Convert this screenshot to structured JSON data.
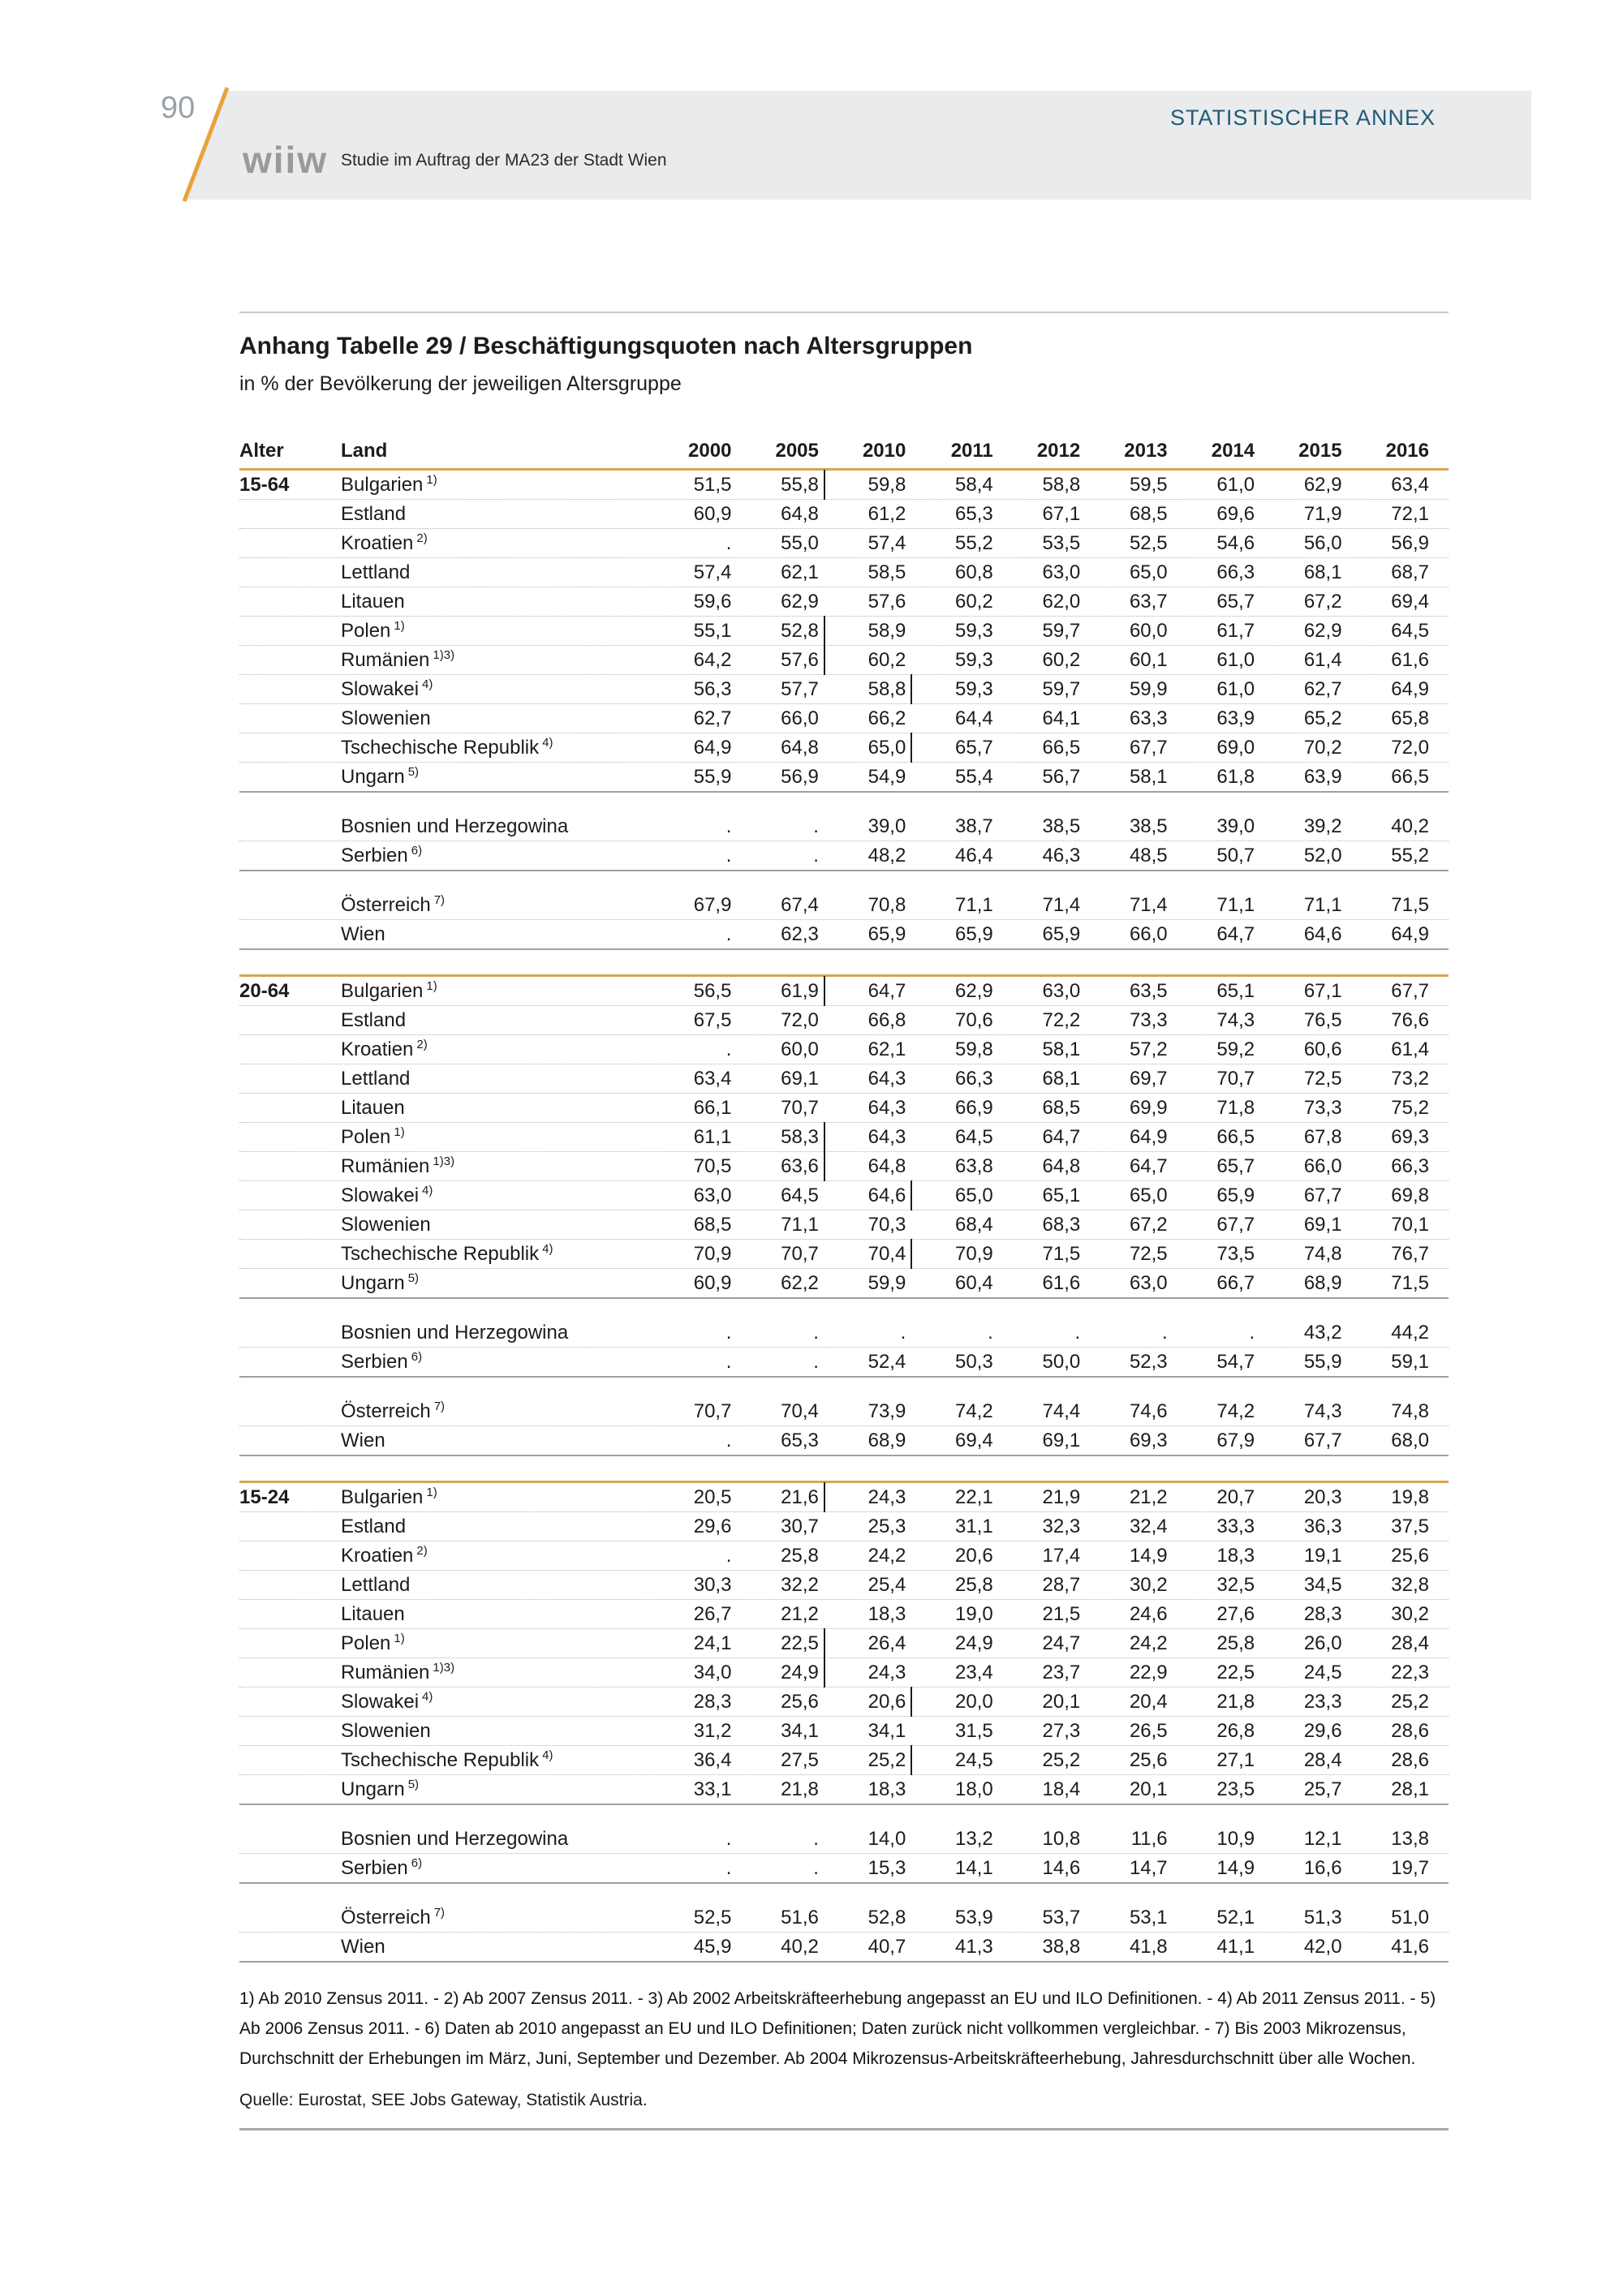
{
  "header": {
    "page_number": "90",
    "annex_title": "STATISTISCHER ANNEX",
    "logo_text": "wiiw",
    "tagline": "Studie im Auftrag der MA23 der Stadt Wien"
  },
  "colors": {
    "accent_gold": "#d8a64f",
    "banner_gray": "#e9ebec",
    "annex_blue": "#235a78",
    "diagonal_orange": "#e8a23c"
  },
  "table": {
    "title": "Anhang Tabelle 29 / Beschäftigungsquoten nach Altersgruppen",
    "subtitle": "in % der Bevölkerung der jeweiligen Altersgruppe",
    "columns": [
      "Alter",
      "Land",
      "2000",
      "2005",
      "2010",
      "2011",
      "2012",
      "2013",
      "2014",
      "2015",
      "2016"
    ],
    "blocks": [
      {
        "age": "15-64",
        "groups": [
          {
            "rows": [
              {
                "land": "Bulgarien",
                "fn": "1)",
                "values": [
                  "51,5",
                  "55,8|",
                  "59,8",
                  "58,4",
                  "58,8",
                  "59,5",
                  "61,0",
                  "62,9",
                  "63,4"
                ]
              },
              {
                "land": "Estland",
                "fn": "",
                "values": [
                  "60,9",
                  "64,8",
                  "61,2",
                  "65,3",
                  "67,1",
                  "68,5",
                  "69,6",
                  "71,9",
                  "72,1"
                ]
              },
              {
                "land": "Kroatien",
                "fn": "2)",
                "values": [
                  ".",
                  "55,0",
                  "57,4",
                  "55,2",
                  "53,5",
                  "52,5",
                  "54,6",
                  "56,0",
                  "56,9"
                ]
              },
              {
                "land": "Lettland",
                "fn": "",
                "values": [
                  "57,4",
                  "62,1",
                  "58,5",
                  "60,8",
                  "63,0",
                  "65,0",
                  "66,3",
                  "68,1",
                  "68,7"
                ]
              },
              {
                "land": "Litauen",
                "fn": "",
                "values": [
                  "59,6",
                  "62,9",
                  "57,6",
                  "60,2",
                  "62,0",
                  "63,7",
                  "65,7",
                  "67,2",
                  "69,4"
                ]
              },
              {
                "land": "Polen",
                "fn": "1)",
                "values": [
                  "55,1",
                  "52,8|",
                  "58,9",
                  "59,3",
                  "59,7",
                  "60,0",
                  "61,7",
                  "62,9",
                  "64,5"
                ]
              },
              {
                "land": "Rumänien",
                "fn": "1)3)",
                "values": [
                  "64,2",
                  "57,6|",
                  "60,2",
                  "59,3",
                  "60,2",
                  "60,1",
                  "61,0",
                  "61,4",
                  "61,6"
                ]
              },
              {
                "land": "Slowakei",
                "fn": "4)",
                "values": [
                  "56,3",
                  "57,7",
                  "58,8|",
                  "59,3",
                  "59,7",
                  "59,9",
                  "61,0",
                  "62,7",
                  "64,9"
                ]
              },
              {
                "land": "Slowenien",
                "fn": "",
                "values": [
                  "62,7",
                  "66,0",
                  "66,2",
                  "64,4",
                  "64,1",
                  "63,3",
                  "63,9",
                  "65,2",
                  "65,8"
                ]
              },
              {
                "land": "Tschechische Republik",
                "fn": "4)",
                "values": [
                  "64,9",
                  "64,8",
                  "65,0|",
                  "65,7",
                  "66,5",
                  "67,7",
                  "69,0",
                  "70,2",
                  "72,0"
                ]
              },
              {
                "land": "Ungarn",
                "fn": "5)",
                "values": [
                  "55,9",
                  "56,9",
                  "54,9",
                  "55,4",
                  "56,7",
                  "58,1",
                  "61,8",
                  "63,9",
                  "66,5"
                ]
              }
            ]
          },
          {
            "rows": [
              {
                "land": "Bosnien und Herzegowina",
                "fn": "",
                "values": [
                  ".",
                  ".",
                  "39,0",
                  "38,7",
                  "38,5",
                  "38,5",
                  "39,0",
                  "39,2",
                  "40,2"
                ]
              },
              {
                "land": "Serbien",
                "fn": "6)",
                "values": [
                  ".",
                  ".",
                  "48,2",
                  "46,4",
                  "46,3",
                  "48,5",
                  "50,7",
                  "52,0",
                  "55,2"
                ]
              }
            ]
          },
          {
            "rows": [
              {
                "land": "Österreich",
                "fn": "7)",
                "values": [
                  "67,9",
                  "67,4",
                  "70,8",
                  "71,1",
                  "71,4",
                  "71,4",
                  "71,1",
                  "71,1",
                  "71,5"
                ]
              },
              {
                "land": "Wien",
                "fn": "",
                "values": [
                  ".",
                  "62,3",
                  "65,9",
                  "65,9",
                  "65,9",
                  "66,0",
                  "64,7",
                  "64,6",
                  "64,9"
                ]
              }
            ]
          }
        ]
      },
      {
        "age": "20-64",
        "groups": [
          {
            "rows": [
              {
                "land": "Bulgarien",
                "fn": "1)",
                "values": [
                  "56,5",
                  "61,9|",
                  "64,7",
                  "62,9",
                  "63,0",
                  "63,5",
                  "65,1",
                  "67,1",
                  "67,7"
                ]
              },
              {
                "land": "Estland",
                "fn": "",
                "values": [
                  "67,5",
                  "72,0",
                  "66,8",
                  "70,6",
                  "72,2",
                  "73,3",
                  "74,3",
                  "76,5",
                  "76,6"
                ]
              },
              {
                "land": "Kroatien",
                "fn": "2)",
                "values": [
                  ".",
                  "60,0",
                  "62,1",
                  "59,8",
                  "58,1",
                  "57,2",
                  "59,2",
                  "60,6",
                  "61,4"
                ]
              },
              {
                "land": "Lettland",
                "fn": "",
                "values": [
                  "63,4",
                  "69,1",
                  "64,3",
                  "66,3",
                  "68,1",
                  "69,7",
                  "70,7",
                  "72,5",
                  "73,2"
                ]
              },
              {
                "land": "Litauen",
                "fn": "",
                "values": [
                  "66,1",
                  "70,7",
                  "64,3",
                  "66,9",
                  "68,5",
                  "69,9",
                  "71,8",
                  "73,3",
                  "75,2"
                ]
              },
              {
                "land": "Polen",
                "fn": "1)",
                "values": [
                  "61,1",
                  "58,3|",
                  "64,3",
                  "64,5",
                  "64,7",
                  "64,9",
                  "66,5",
                  "67,8",
                  "69,3"
                ]
              },
              {
                "land": "Rumänien",
                "fn": "1)3)",
                "values": [
                  "70,5",
                  "63,6|",
                  "64,8",
                  "63,8",
                  "64,8",
                  "64,7",
                  "65,7",
                  "66,0",
                  "66,3"
                ]
              },
              {
                "land": "Slowakei",
                "fn": "4)",
                "values": [
                  "63,0",
                  "64,5",
                  "64,6|",
                  "65,0",
                  "65,1",
                  "65,0",
                  "65,9",
                  "67,7",
                  "69,8"
                ]
              },
              {
                "land": "Slowenien",
                "fn": "",
                "values": [
                  "68,5",
                  "71,1",
                  "70,3",
                  "68,4",
                  "68,3",
                  "67,2",
                  "67,7",
                  "69,1",
                  "70,1"
                ]
              },
              {
                "land": "Tschechische Republik",
                "fn": "4)",
                "values": [
                  "70,9",
                  "70,7",
                  "70,4|",
                  "70,9",
                  "71,5",
                  "72,5",
                  "73,5",
                  "74,8",
                  "76,7"
                ]
              },
              {
                "land": "Ungarn",
                "fn": "5)",
                "values": [
                  "60,9",
                  "62,2",
                  "59,9",
                  "60,4",
                  "61,6",
                  "63,0",
                  "66,7",
                  "68,9",
                  "71,5"
                ]
              }
            ]
          },
          {
            "rows": [
              {
                "land": "Bosnien und Herzegowina",
                "fn": "",
                "values": [
                  ".",
                  ".",
                  ".",
                  ".",
                  ".",
                  ".",
                  ".",
                  "43,2",
                  "44,2"
                ]
              },
              {
                "land": "Serbien",
                "fn": "6)",
                "values": [
                  ".",
                  ".",
                  "52,4",
                  "50,3",
                  "50,0",
                  "52,3",
                  "54,7",
                  "55,9",
                  "59,1"
                ]
              }
            ]
          },
          {
            "rows": [
              {
                "land": "Österreich",
                "fn": "7)",
                "values": [
                  "70,7",
                  "70,4",
                  "73,9",
                  "74,2",
                  "74,4",
                  "74,6",
                  "74,2",
                  "74,3",
                  "74,8"
                ]
              },
              {
                "land": "Wien",
                "fn": "",
                "values": [
                  ".",
                  "65,3",
                  "68,9",
                  "69,4",
                  "69,1",
                  "69,3",
                  "67,9",
                  "67,7",
                  "68,0"
                ]
              }
            ]
          }
        ]
      },
      {
        "age": "15-24",
        "groups": [
          {
            "rows": [
              {
                "land": "Bulgarien",
                "fn": "1)",
                "values": [
                  "20,5",
                  "21,6|",
                  "24,3",
                  "22,1",
                  "21,9",
                  "21,2",
                  "20,7",
                  "20,3",
                  "19,8"
                ]
              },
              {
                "land": "Estland",
                "fn": "",
                "values": [
                  "29,6",
                  "30,7",
                  "25,3",
                  "31,1",
                  "32,3",
                  "32,4",
                  "33,3",
                  "36,3",
                  "37,5"
                ]
              },
              {
                "land": "Kroatien",
                "fn": "2)",
                "values": [
                  ".",
                  "25,8",
                  "24,2",
                  "20,6",
                  "17,4",
                  "14,9",
                  "18,3",
                  "19,1",
                  "25,6"
                ]
              },
              {
                "land": "Lettland",
                "fn": "",
                "values": [
                  "30,3",
                  "32,2",
                  "25,4",
                  "25,8",
                  "28,7",
                  "30,2",
                  "32,5",
                  "34,5",
                  "32,8"
                ]
              },
              {
                "land": "Litauen",
                "fn": "",
                "values": [
                  "26,7",
                  "21,2",
                  "18,3",
                  "19,0",
                  "21,5",
                  "24,6",
                  "27,6",
                  "28,3",
                  "30,2"
                ]
              },
              {
                "land": "Polen",
                "fn": "1)",
                "values": [
                  "24,1",
                  "22,5|",
                  "26,4",
                  "24,9",
                  "24,7",
                  "24,2",
                  "25,8",
                  "26,0",
                  "28,4"
                ]
              },
              {
                "land": "Rumänien",
                "fn": "1)3)",
                "values": [
                  "34,0",
                  "24,9|",
                  "24,3",
                  "23,4",
                  "23,7",
                  "22,9",
                  "22,5",
                  "24,5",
                  "22,3"
                ]
              },
              {
                "land": "Slowakei",
                "fn": "4)",
                "values": [
                  "28,3",
                  "25,6",
                  "20,6|",
                  "20,0",
                  "20,1",
                  "20,4",
                  "21,8",
                  "23,3",
                  "25,2"
                ]
              },
              {
                "land": "Slowenien",
                "fn": "",
                "values": [
                  "31,2",
                  "34,1",
                  "34,1",
                  "31,5",
                  "27,3",
                  "26,5",
                  "26,8",
                  "29,6",
                  "28,6"
                ]
              },
              {
                "land": "Tschechische Republik",
                "fn": "4)",
                "values": [
                  "36,4",
                  "27,5",
                  "25,2|",
                  "24,5",
                  "25,2",
                  "25,6",
                  "27,1",
                  "28,4",
                  "28,6"
                ]
              },
              {
                "land": "Ungarn",
                "fn": "5)",
                "values": [
                  "33,1",
                  "21,8",
                  "18,3",
                  "18,0",
                  "18,4",
                  "20,1",
                  "23,5",
                  "25,7",
                  "28,1"
                ]
              }
            ]
          },
          {
            "rows": [
              {
                "land": "Bosnien und Herzegowina",
                "fn": "",
                "values": [
                  ".",
                  ".",
                  "14,0",
                  "13,2",
                  "10,8",
                  "11,6",
                  "10,9",
                  "12,1",
                  "13,8"
                ]
              },
              {
                "land": "Serbien",
                "fn": "6)",
                "values": [
                  ".",
                  ".",
                  "15,3",
                  "14,1",
                  "14,6",
                  "14,7",
                  "14,9",
                  "16,6",
                  "19,7"
                ]
              }
            ]
          },
          {
            "rows": [
              {
                "land": "Österreich",
                "fn": "7)",
                "values": [
                  "52,5",
                  "51,6",
                  "52,8",
                  "53,9",
                  "53,7",
                  "53,1",
                  "52,1",
                  "51,3",
                  "51,0"
                ]
              },
              {
                "land": "Wien",
                "fn": "",
                "values": [
                  "45,9",
                  "40,2",
                  "40,7",
                  "41,3",
                  "38,8",
                  "41,8",
                  "41,1",
                  "42,0",
                  "41,6"
                ]
              }
            ]
          }
        ]
      }
    ]
  },
  "footnotes": "1) Ab 2010 Zensus 2011. - 2) Ab 2007 Zensus 2011. - 3) Ab 2002 Arbeitskräfteerhebung angepasst an EU und ILO Definitionen. - 4) Ab 2011 Zensus 2011. - 5) Ab 2006 Zensus 2011. - 6) Daten ab 2010 angepasst an EU und ILO Definitionen; Daten zurück nicht vollkommen vergleichbar. - 7) Bis 2003 Mikrozensus, Durchschnitt der Erhebungen im März, Juni, September und Dezember. Ab 2004 Mikrozensus-Arbeitskräfteerhebung, Jahresdurchschnitt über alle Wochen.",
  "source": "Quelle: Eurostat, SEE Jobs Gateway, Statistik Austria."
}
